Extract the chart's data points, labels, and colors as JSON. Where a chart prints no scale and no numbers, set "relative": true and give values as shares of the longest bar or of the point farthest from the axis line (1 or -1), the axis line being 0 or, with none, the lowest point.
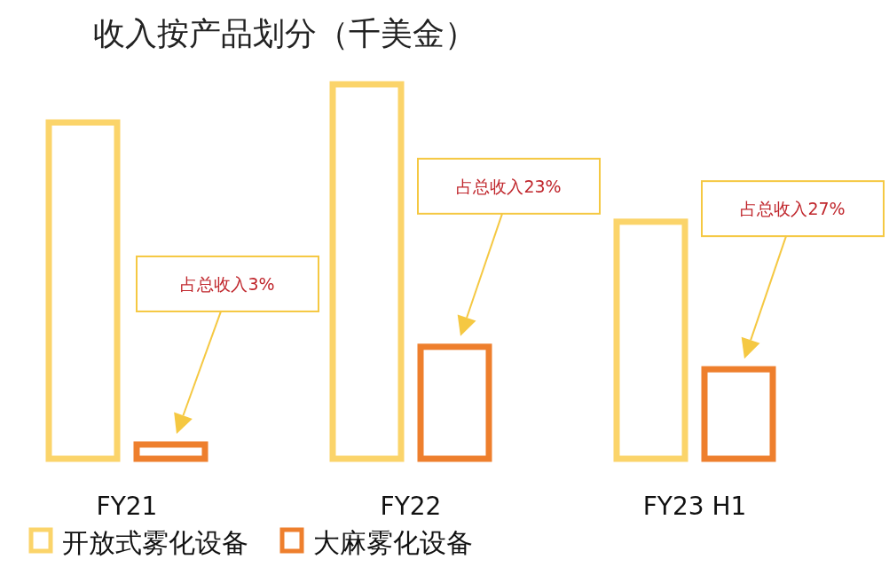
{
  "chart_data": {
    "type": "bar",
    "title": "收入按产品划分（千美金）",
    "relative": true,
    "categories": [
      "FY21",
      "FY22",
      "FY23 H1"
    ],
    "series": [
      {
        "name": "开放式雾化设备",
        "color": "#fbd46a",
        "values": [
          0.898,
          1,
          0.633
        ]
      },
      {
        "name": "大麻雾化设备",
        "color": "#ee7f2d",
        "values": [
          0.038,
          0.299,
          0.239
        ]
      }
    ],
    "annotations": [
      "占总收入3%",
      "占总收入23%",
      "占总收入27%"
    ],
    "legend": "bottom left"
  }
}
